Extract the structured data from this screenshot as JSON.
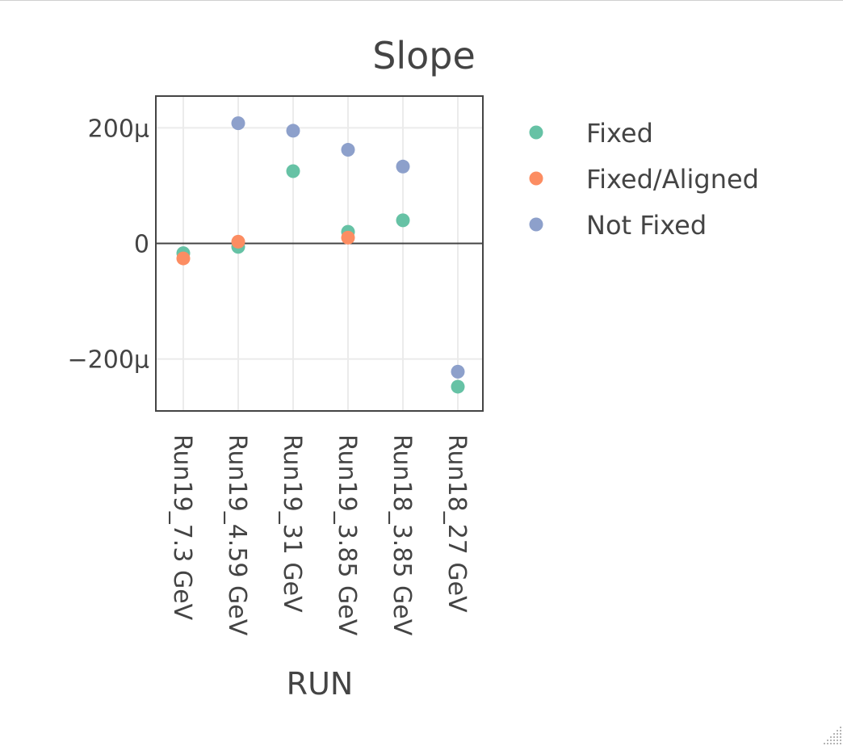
{
  "chart_data": {
    "type": "scatter",
    "title": "Slope",
    "xlabel": "RUN",
    "ylabel": "",
    "categories": [
      "Run19_7.3 GeV",
      "Run19_4.59 GeV",
      "Run19_31 GeV",
      "Run19_3.85 GeV",
      "Run18_3.85 GeV",
      "Run18_27 GeV"
    ],
    "ylim": [
      -0.00029,
      0.000255
    ],
    "yticks": [
      {
        "value": 0.0002,
        "label": "200μ"
      },
      {
        "value": 0,
        "label": "0"
      },
      {
        "value": -0.0002,
        "label": "−200μ"
      }
    ],
    "grid": true,
    "legend_position": "right",
    "series": [
      {
        "name": "Fixed",
        "color": "#66c2a5",
        "points": [
          {
            "x": "Run19_7.3 GeV",
            "y": -1.7e-05
          },
          {
            "x": "Run19_4.59 GeV",
            "y": -6e-06
          },
          {
            "x": "Run19_31 GeV",
            "y": 0.000125
          },
          {
            "x": "Run19_3.85 GeV",
            "y": 2e-05
          },
          {
            "x": "Run18_3.85 GeV",
            "y": 4e-05
          },
          {
            "x": "Run18_27 GeV",
            "y": -0.000248
          }
        ]
      },
      {
        "name": "Fixed/Aligned",
        "color": "#fc8d62",
        "points": [
          {
            "x": "Run19_7.3 GeV",
            "y": -2.6e-05
          },
          {
            "x": "Run19_4.59 GeV",
            "y": 3e-06
          },
          {
            "x": "Run19_3.85 GeV",
            "y": 1e-05
          }
        ]
      },
      {
        "name": "Not Fixed",
        "color": "#8da0cb",
        "points": [
          {
            "x": "Run19_4.59 GeV",
            "y": 0.000208
          },
          {
            "x": "Run19_31 GeV",
            "y": 0.000195
          },
          {
            "x": "Run19_3.85 GeV",
            "y": 0.000162
          },
          {
            "x": "Run18_3.85 GeV",
            "y": 0.000133
          },
          {
            "x": "Run18_27 GeV",
            "y": -0.000222
          }
        ]
      }
    ]
  }
}
